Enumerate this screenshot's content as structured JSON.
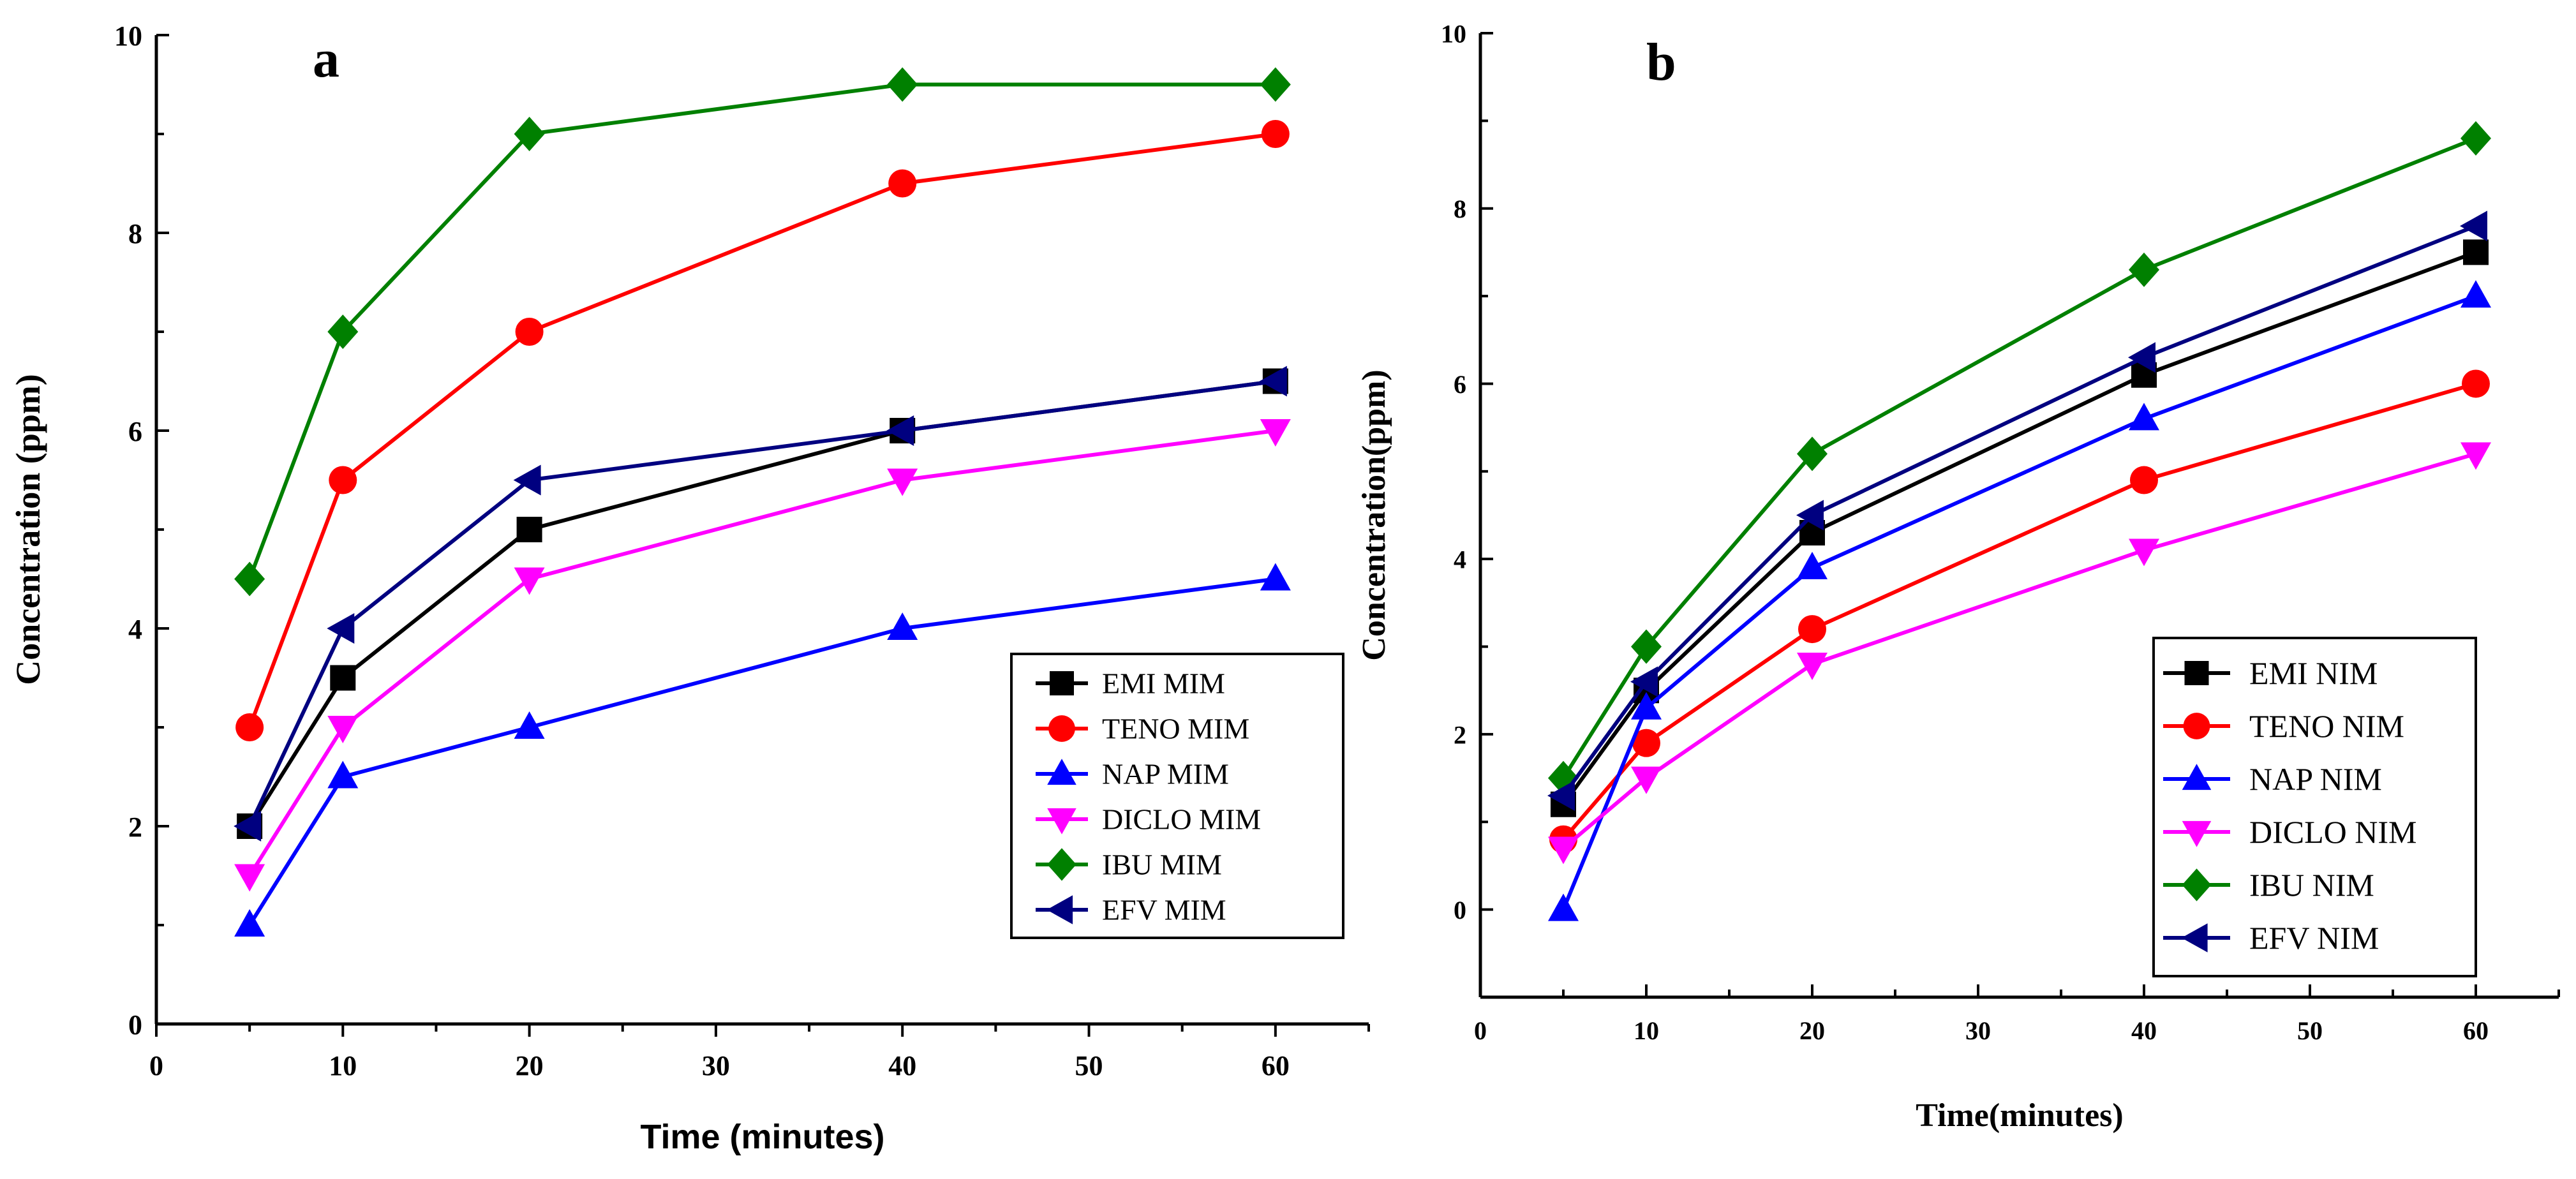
{
  "chart_data": [
    {
      "type": "line",
      "panel_label": "a",
      "xlabel": "Time (minutes)",
      "ylabel": "Concentration (ppm)",
      "xlim": [
        0,
        65
      ],
      "ylim": [
        0,
        10
      ],
      "xticks": [
        0,
        10,
        20,
        30,
        40,
        50,
        60
      ],
      "yticks": [
        0,
        2,
        4,
        6,
        8,
        10
      ],
      "x": [
        5,
        10,
        20,
        40,
        60
      ],
      "legend_position": "lower-right",
      "series": [
        {
          "name": "EMI MIM",
          "color": "#000000",
          "marker": "square",
          "values": [
            2,
            3.5,
            5,
            6,
            6.5
          ]
        },
        {
          "name": "TENO MIM",
          "color": "#ff0000",
          "marker": "circle",
          "values": [
            3,
            5.5,
            7,
            8.5,
            9
          ]
        },
        {
          "name": "NAP MIM",
          "color": "#0000ff",
          "marker": "triangle-up",
          "values": [
            1,
            2.5,
            3,
            4,
            4.5
          ]
        },
        {
          "name": "DICLO MIM",
          "color": "#ff00ff",
          "marker": "triangle-down",
          "values": [
            1.5,
            3,
            4.5,
            5.5,
            6
          ]
        },
        {
          "name": "IBU MIM",
          "color": "#008000",
          "marker": "diamond",
          "values": [
            4.5,
            7,
            9,
            9.5,
            9.5
          ]
        },
        {
          "name": "EFV MIM",
          "color": "#000080",
          "marker": "triangle-left",
          "values": [
            2,
            4,
            5.5,
            6,
            6.5
          ]
        }
      ]
    },
    {
      "type": "line",
      "panel_label": "b",
      "xlabel": "Time(minutes)",
      "ylabel": "Concentration(ppm)",
      "xlim": [
        0,
        65
      ],
      "ylim": [
        -1,
        10
      ],
      "xticks": [
        0,
        10,
        20,
        30,
        40,
        50,
        60
      ],
      "yticks": [
        0,
        2,
        4,
        6,
        8,
        10
      ],
      "x": [
        5,
        10,
        20,
        40,
        60
      ],
      "legend_position": "lower-right",
      "series": [
        {
          "name": "EMI NIM",
          "color": "#000000",
          "marker": "square",
          "values": [
            1.2,
            2.5,
            4.3,
            6.1,
            7.5
          ]
        },
        {
          "name": "TENO NIM",
          "color": "#ff0000",
          "marker": "circle",
          "values": [
            0.8,
            1.9,
            3.2,
            4.9,
            6
          ]
        },
        {
          "name": "NAP NIM",
          "color": "#0000ff",
          "marker": "triangle-up",
          "values": [
            0,
            2.3,
            3.9,
            5.6,
            7
          ]
        },
        {
          "name": "DICLO NIM",
          "color": "#ff00ff",
          "marker": "triangle-down",
          "values": [
            0.7,
            1.5,
            2.8,
            4.1,
            5.2
          ]
        },
        {
          "name": "IBU NIM",
          "color": "#008000",
          "marker": "diamond",
          "values": [
            1.5,
            3,
            5.2,
            7.3,
            8.8
          ]
        },
        {
          "name": "EFV NIM",
          "color": "#000080",
          "marker": "triangle-left",
          "values": [
            1.3,
            2.6,
            4.5,
            6.3,
            7.8
          ]
        }
      ]
    }
  ]
}
